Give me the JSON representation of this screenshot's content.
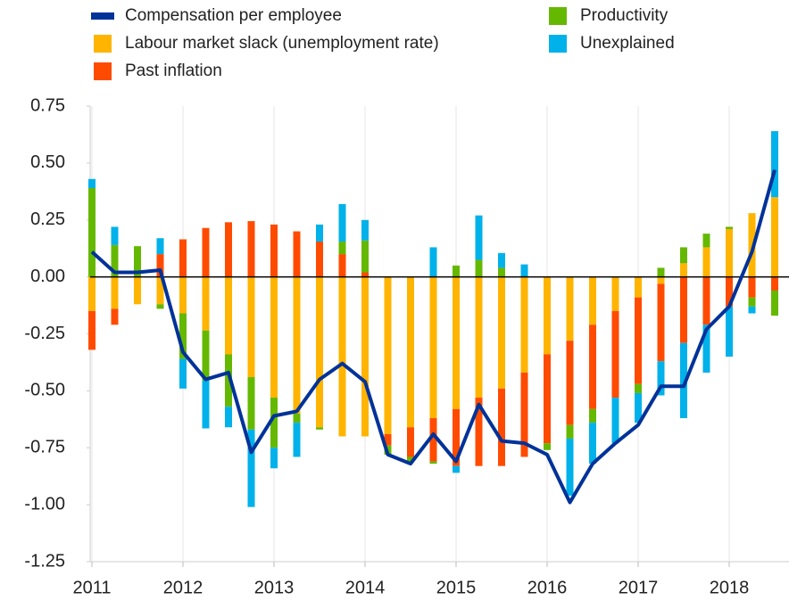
{
  "chart_data": {
    "type": "bar",
    "categories": [
      "2011",
      null,
      null,
      null,
      "2012",
      null,
      null,
      null,
      "2013",
      null,
      null,
      null,
      "2014",
      null,
      null,
      null,
      "2015",
      null,
      null,
      null,
      "2016",
      null,
      null,
      null,
      "2017",
      null,
      null,
      null,
      "2018",
      null,
      null
    ],
    "series": [
      {
        "name": "Compensation per employee",
        "color": "#003299",
        "type": "line",
        "values": [
          0.11,
          0.02,
          0.02,
          0.03,
          -0.33,
          -0.45,
          -0.42,
          -0.77,
          -0.61,
          -0.59,
          -0.45,
          -0.38,
          -0.46,
          -0.78,
          -0.82,
          -0.69,
          -0.81,
          -0.56,
          -0.72,
          -0.73,
          -0.78,
          -0.99,
          -0.82,
          -0.73,
          -0.65,
          -0.48,
          -0.48,
          -0.23,
          -0.13,
          0.11,
          0.47
        ]
      },
      {
        "name": "Labour market slack (unemployment rate)",
        "color": "#ffb400",
        "values": [
          -0.15,
          -0.14,
          -0.12,
          -0.12,
          -0.16,
          -0.235,
          -0.34,
          -0.44,
          -0.53,
          -0.6,
          -0.66,
          -0.7,
          -0.7,
          -0.69,
          -0.66,
          -0.62,
          -0.58,
          -0.53,
          -0.49,
          -0.42,
          -0.34,
          -0.28,
          -0.21,
          -0.15,
          -0.09,
          -0.03,
          0.06,
          0.13,
          0.21,
          0.28,
          0.35
        ]
      },
      {
        "name": "Past inflation",
        "color": "#ff4b00",
        "values": [
          -0.17,
          -0.07,
          0,
          0.1,
          0.165,
          0.215,
          0.24,
          0.245,
          0.23,
          0.2,
          0.155,
          0.1,
          0.02,
          -0.05,
          -0.13,
          -0.19,
          -0.25,
          -0.3,
          -0.34,
          -0.37,
          -0.39,
          -0.37,
          -0.37,
          -0.38,
          -0.38,
          -0.34,
          -0.29,
          -0.21,
          -0.13,
          -0.09,
          -0.06
        ]
      },
      {
        "name": "Productivity",
        "color": "#65b800",
        "values": [
          0.39,
          0.14,
          0.135,
          -0.02,
          -0.2,
          -0.22,
          -0.23,
          -0.23,
          -0.22,
          -0.04,
          -0.01,
          0.055,
          0.14,
          -0.04,
          -0.02,
          -0.01,
          0.05,
          0.075,
          0.04,
          0,
          -0.03,
          -0.06,
          -0.06,
          0,
          -0.04,
          0.04,
          0.07,
          0.06,
          0.01,
          -0.04,
          -0.11
        ]
      },
      {
        "name": "Unexplained",
        "color": "#00b1ea",
        "values": [
          0.04,
          0.08,
          0,
          0.07,
          -0.13,
          -0.21,
          -0.09,
          -0.34,
          -0.09,
          -0.15,
          0.075,
          0.165,
          0.09,
          0,
          0,
          0.13,
          -0.03,
          0.195,
          0.065,
          0.055,
          0,
          -0.25,
          -0.18,
          -0.2,
          -0.13,
          -0.15,
          -0.33,
          -0.21,
          -0.22,
          -0.03,
          0.29
        ]
      }
    ],
    "ylim": [
      -1.25,
      0.75
    ],
    "yticks": [
      {
        "value": 0.75,
        "label": "0.75"
      },
      {
        "value": 0.5,
        "label": "0.50"
      },
      {
        "value": 0.25,
        "label": "0.25"
      },
      {
        "value": 0,
        "label": "0.00"
      },
      {
        "value": -0.25,
        "label": "-0.25"
      },
      {
        "value": -0.5,
        "label": "-0.50"
      },
      {
        "value": -0.75,
        "label": "-0.75"
      },
      {
        "value": -1,
        "label": "-1.00"
      },
      {
        "value": -1.25,
        "label": "-1.25"
      }
    ],
    "legend": "top"
  }
}
